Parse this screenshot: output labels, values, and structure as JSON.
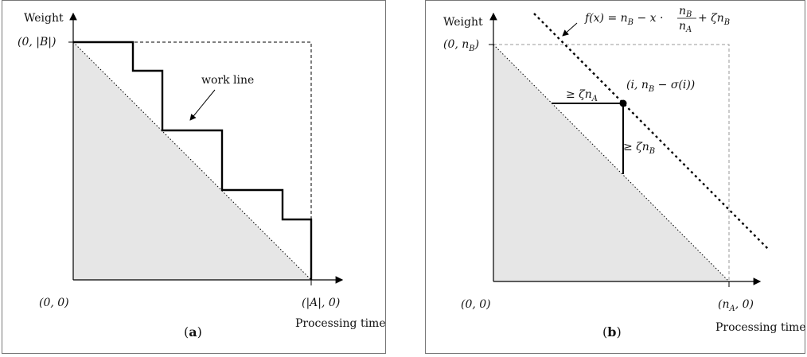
{
  "panel_a": {
    "y_axis_label": "Weight",
    "x_axis_label": "Processing time",
    "top_left_label": "(0, |B|)",
    "origin_label": "(0, 0)",
    "x_end_label": "(|A|, 0)",
    "annotation": "work line",
    "caption_open": "(",
    "caption_letter": "a",
    "caption_close": ")"
  },
  "panel_b": {
    "y_axis_label": "Weight",
    "x_axis_label": "Processing time",
    "top_left_label": "(0, n",
    "top_left_sub": "B",
    "top_left_close": ")",
    "origin_label": "(0, 0)",
    "x_end_label": "(n",
    "x_end_sub": "A",
    "x_end_close": ", 0)",
    "function_prefix": "f(x) = n",
    "function_sub_b": "B",
    "function_mid": " − x · ",
    "frac_num": "n",
    "frac_num_sub": "B",
    "frac_den": "n",
    "frac_den_sub": "A",
    "function_suffix": " + ζn",
    "function_suffix_sub": "B",
    "point_label": "(i, n",
    "point_label_sub": "B",
    "point_label_close": " − σ(i))",
    "horizontal_bound": "≥ ζn",
    "horizontal_bound_sub": "A",
    "vertical_bound": "≥ ζn",
    "vertical_bound_sub": "B",
    "caption_open": "(",
    "caption_letter": "b",
    "caption_close": ")"
  }
}
